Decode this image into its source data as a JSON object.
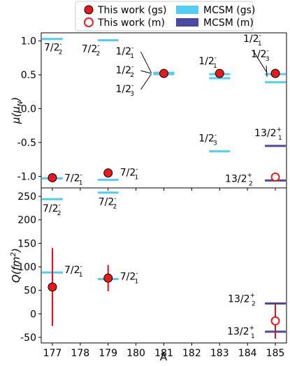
{
  "chart_data": [
    {
      "type": "scatter",
      "panel": "top",
      "ylabel_main": "μ(μ",
      "ylabel_sub": "N",
      "ylabel_close": ")",
      "xlim": [
        176.6,
        185.4
      ],
      "ylim": [
        -1.17,
        1.12
      ],
      "yticks": [
        "1.0",
        "0.5",
        "0.0",
        "-0.5",
        "-1.0"
      ],
      "ytick_values": [
        1.0,
        0.5,
        0.0,
        -0.5,
        -1.0
      ],
      "grid": false,
      "legend": {
        "placement": "top-center",
        "items": [
          {
            "label": "This work (gs)",
            "marker": "filled-circle"
          },
          {
            "label": "MCSM (gs)",
            "marker": "light-bar"
          },
          {
            "label": "This work (m)",
            "marker": "open-circle"
          },
          {
            "label": "MCSM (m)",
            "marker": "dark-bar"
          }
        ]
      },
      "experiment_gs": [
        {
          "x": 177,
          "y": -1.02
        },
        {
          "x": 179,
          "y": -0.95
        },
        {
          "x": 181,
          "y": 0.52
        },
        {
          "x": 183,
          "y": 0.52
        },
        {
          "x": 185,
          "y": 0.52
        }
      ],
      "experiment_m": [
        {
          "x": 185,
          "y": -1.01
        }
      ],
      "mcsm_gs": [
        {
          "x": 177,
          "y": 1.03
        },
        {
          "x": 177,
          "y": -1.03
        },
        {
          "x": 179,
          "y": 1.01
        },
        {
          "x": 179,
          "y": -1.05
        },
        {
          "x": 181,
          "y": 0.53
        },
        {
          "x": 181,
          "y": 0.51
        },
        {
          "x": 183,
          "y": 0.51
        },
        {
          "x": 183,
          "y": 0.45
        },
        {
          "x": 183,
          "y": -0.63
        },
        {
          "x": 185,
          "y": 0.51
        },
        {
          "x": 185,
          "y": 0.39
        }
      ],
      "mcsm_m": [
        {
          "x": 185,
          "y": -0.55
        },
        {
          "x": 185,
          "y": -1.06
        }
      ]
    },
    {
      "type": "scatter",
      "panel": "bottom",
      "ylabel_main": "Q(fm",
      "ylabel_sup": "2",
      "ylabel_close": ")",
      "xlabel": "A",
      "xlim": [
        176.6,
        185.4
      ],
      "ylim": [
        -62,
        268
      ],
      "xticks": [
        "177",
        "178",
        "179",
        "180",
        "181",
        "182",
        "183",
        "184",
        "185"
      ],
      "xtick_values": [
        177,
        178,
        179,
        180,
        181,
        182,
        183,
        184,
        185
      ],
      "yticks": [
        "250",
        "200",
        "150",
        "100",
        "50",
        "0",
        "-50"
      ],
      "ytick_values": [
        250,
        200,
        150,
        100,
        50,
        0,
        -50
      ],
      "grid": false,
      "experiment_gs": [
        {
          "x": 177,
          "y": 57,
          "err": 83
        },
        {
          "x": 179,
          "y": 76,
          "err": 28
        }
      ],
      "experiment_m": [
        {
          "x": 185,
          "y": -15,
          "err": 38
        }
      ],
      "mcsm_gs": [
        {
          "x": 177,
          "y": 244
        },
        {
          "x": 177,
          "y": 88
        },
        {
          "x": 179,
          "y": 258
        },
        {
          "x": 179,
          "y": 74
        }
      ],
      "mcsm_m": [
        {
          "x": 185,
          "y": 22
        },
        {
          "x": 185,
          "y": -38
        }
      ]
    }
  ],
  "state_labels": {
    "top": [
      {
        "x": 177,
        "y": 1.03,
        "j": "7/2",
        "p": "-",
        "n": "2",
        "side": "below"
      },
      {
        "x": 179,
        "y": 1.01,
        "j": "7/2",
        "p": "-",
        "n": "2",
        "side": "below-left"
      },
      {
        "x": 181,
        "y": 0.53,
        "j": "1/2",
        "p": "-",
        "n": "1",
        "side": "left-1"
      },
      {
        "x": 181,
        "y": 0.52,
        "j": "1/2",
        "p": "-",
        "n": "2",
        "side": "left-2"
      },
      {
        "x": 181,
        "y": 0.51,
        "j": "1/2",
        "p": "-",
        "n": "3",
        "side": "left-3"
      },
      {
        "x": 183,
        "y": 0.51,
        "j": "1/2",
        "p": "-",
        "n": "1",
        "side": "above-left"
      },
      {
        "x": 183,
        "y": -0.63,
        "j": "1/2",
        "p": "-",
        "n": "3",
        "side": "above-left"
      },
      {
        "x": 185,
        "y": 0.51,
        "j": "1/2",
        "p": "-",
        "n": "1",
        "side": "top-1"
      },
      {
        "x": 185,
        "y": 0.45,
        "j": "1/2",
        "p": "-",
        "n": "3",
        "side": "top-2"
      },
      {
        "x": 185,
        "y": -0.55,
        "j": "13/2",
        "p": "+",
        "n": "1",
        "side": "above-left"
      },
      {
        "x": 185,
        "y": -1.06,
        "j": "13/2",
        "p": "+",
        "n": "2",
        "side": "left"
      },
      {
        "x": 177,
        "y": -1.03,
        "j": "7/2",
        "p": "-",
        "n": "1",
        "side": "right"
      },
      {
        "x": 179,
        "y": -0.95,
        "j": "7/2",
        "p": "-",
        "n": "1",
        "side": "right"
      }
    ],
    "bottom": [
      {
        "x": 177,
        "y": 244,
        "j": "7/2",
        "p": "-",
        "n": "2",
        "side": "below"
      },
      {
        "x": 179,
        "y": 258,
        "j": "7/2",
        "p": "-",
        "n": "2",
        "side": "below"
      },
      {
        "x": 177,
        "y": 88,
        "j": "7/2",
        "p": "-",
        "n": "1",
        "side": "right"
      },
      {
        "x": 179,
        "y": 74,
        "j": "7/2",
        "p": "-",
        "n": "1",
        "side": "right"
      },
      {
        "x": 185,
        "y": 22,
        "j": "13/2",
        "p": "+",
        "n": "2",
        "side": "left-above"
      },
      {
        "x": 185,
        "y": -38,
        "j": "13/2",
        "p": "+",
        "n": "1",
        "side": "left"
      }
    ]
  },
  "colors": {
    "mcsm_gs": "#55ccf2",
    "mcsm_m": "#4b4aa2",
    "experiment_fill": "#e8191c",
    "errorbar": "#d8141b"
  }
}
